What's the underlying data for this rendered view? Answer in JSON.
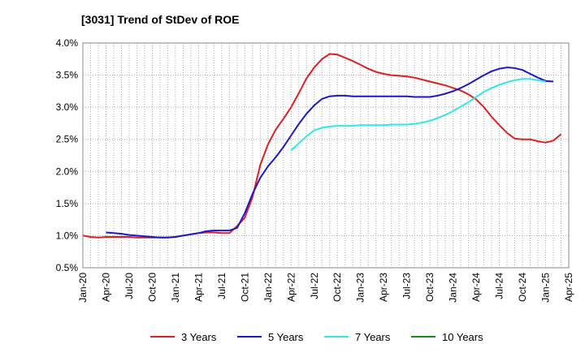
{
  "chart_data": {
    "type": "line",
    "title": "[3031]  Trend of StDev of ROE",
    "xlabel": "",
    "ylabel": "",
    "y_ticks": [
      "0.5%",
      "1.0%",
      "1.5%",
      "2.0%",
      "2.5%",
      "3.0%",
      "3.5%",
      "4.0%"
    ],
    "ylim": [
      0.5,
      4.0
    ],
    "x_ticks": [
      "Jan-20",
      "Apr-20",
      "Jul-20",
      "Oct-20",
      "Jan-21",
      "Apr-21",
      "Jul-21",
      "Oct-21",
      "Jan-22",
      "Apr-22",
      "Jul-22",
      "Oct-22",
      "Jan-23",
      "Apr-23",
      "Jul-23",
      "Oct-23",
      "Jan-24",
      "Apr-24",
      "Jul-24",
      "Oct-24",
      "Jan-25",
      "Apr-25"
    ],
    "grid": true,
    "legend_position": "bottom",
    "series": [
      {
        "name": "3 Years",
        "color": "#e02020",
        "points": [
          [
            0,
            1.0
          ],
          [
            1,
            0.98
          ],
          [
            2,
            0.97
          ],
          [
            3,
            0.98
          ],
          [
            4,
            0.98
          ],
          [
            5,
            0.98
          ],
          [
            6,
            0.98
          ],
          [
            7,
            0.97
          ],
          [
            8,
            0.97
          ],
          [
            9,
            0.97
          ],
          [
            10,
            0.97
          ],
          [
            11,
            0.97
          ],
          [
            12,
            0.98
          ],
          [
            13,
            1.0
          ],
          [
            14,
            1.02
          ],
          [
            15,
            1.04
          ],
          [
            16,
            1.05
          ],
          [
            17,
            1.05
          ],
          [
            18,
            1.04
          ],
          [
            19,
            1.04
          ],
          [
            20,
            1.15
          ],
          [
            21,
            1.28
          ],
          [
            22,
            1.6
          ],
          [
            23,
            2.1
          ],
          [
            24,
            2.42
          ],
          [
            25,
            2.65
          ],
          [
            26,
            2.82
          ],
          [
            27,
            3.0
          ],
          [
            28,
            3.22
          ],
          [
            29,
            3.45
          ],
          [
            30,
            3.62
          ],
          [
            31,
            3.75
          ],
          [
            32,
            3.83
          ],
          [
            33,
            3.82
          ],
          [
            34,
            3.77
          ],
          [
            35,
            3.72
          ],
          [
            36,
            3.66
          ],
          [
            37,
            3.6
          ],
          [
            38,
            3.55
          ],
          [
            39,
            3.52
          ],
          [
            40,
            3.5
          ],
          [
            41,
            3.49
          ],
          [
            42,
            3.48
          ],
          [
            43,
            3.46
          ],
          [
            44,
            3.43
          ],
          [
            45,
            3.4
          ],
          [
            46,
            3.37
          ],
          [
            47,
            3.34
          ],
          [
            48,
            3.3
          ],
          [
            49,
            3.26
          ],
          [
            50,
            3.2
          ],
          [
            51,
            3.12
          ],
          [
            52,
            3.0
          ],
          [
            53,
            2.85
          ],
          [
            54,
            2.72
          ],
          [
            55,
            2.6
          ],
          [
            56,
            2.51
          ],
          [
            57,
            2.5
          ],
          [
            58,
            2.5
          ],
          [
            59,
            2.47
          ],
          [
            60,
            2.45
          ],
          [
            61,
            2.48
          ],
          [
            62,
            2.58
          ]
        ]
      },
      {
        "name": "5 Years",
        "color": "#1a1acc",
        "points": [
          [
            3,
            1.05
          ],
          [
            4,
            1.04
          ],
          [
            5,
            1.03
          ],
          [
            6,
            1.01
          ],
          [
            7,
            1.0
          ],
          [
            8,
            0.99
          ],
          [
            9,
            0.98
          ],
          [
            10,
            0.97
          ],
          [
            11,
            0.97
          ],
          [
            12,
            0.98
          ],
          [
            13,
            1.0
          ],
          [
            14,
            1.02
          ],
          [
            15,
            1.04
          ],
          [
            16,
            1.07
          ],
          [
            17,
            1.08
          ],
          [
            18,
            1.08
          ],
          [
            19,
            1.08
          ],
          [
            20,
            1.12
          ],
          [
            21,
            1.35
          ],
          [
            22,
            1.65
          ],
          [
            23,
            1.9
          ],
          [
            24,
            2.08
          ],
          [
            25,
            2.22
          ],
          [
            26,
            2.38
          ],
          [
            27,
            2.56
          ],
          [
            28,
            2.74
          ],
          [
            29,
            2.9
          ],
          [
            30,
            3.03
          ],
          [
            31,
            3.13
          ],
          [
            32,
            3.17
          ],
          [
            33,
            3.18
          ],
          [
            34,
            3.18
          ],
          [
            35,
            3.17
          ],
          [
            36,
            3.17
          ],
          [
            37,
            3.17
          ],
          [
            38,
            3.17
          ],
          [
            39,
            3.17
          ],
          [
            40,
            3.17
          ],
          [
            41,
            3.17
          ],
          [
            42,
            3.17
          ],
          [
            43,
            3.16
          ],
          [
            44,
            3.16
          ],
          [
            45,
            3.16
          ],
          [
            46,
            3.18
          ],
          [
            47,
            3.21
          ],
          [
            48,
            3.25
          ],
          [
            49,
            3.3
          ],
          [
            50,
            3.36
          ],
          [
            51,
            3.43
          ],
          [
            52,
            3.5
          ],
          [
            53,
            3.56
          ],
          [
            54,
            3.6
          ],
          [
            55,
            3.62
          ],
          [
            56,
            3.61
          ],
          [
            57,
            3.58
          ],
          [
            58,
            3.52
          ],
          [
            59,
            3.46
          ],
          [
            60,
            3.41
          ],
          [
            61,
            3.4
          ]
        ]
      },
      {
        "name": "7 Years",
        "color": "#30e8e8",
        "points": [
          [
            27,
            2.33
          ],
          [
            28,
            2.44
          ],
          [
            29,
            2.55
          ],
          [
            30,
            2.64
          ],
          [
            31,
            2.68
          ],
          [
            32,
            2.7
          ],
          [
            33,
            2.71
          ],
          [
            34,
            2.71
          ],
          [
            35,
            2.71
          ],
          [
            36,
            2.72
          ],
          [
            37,
            2.72
          ],
          [
            38,
            2.72
          ],
          [
            39,
            2.72
          ],
          [
            40,
            2.73
          ],
          [
            41,
            2.73
          ],
          [
            42,
            2.73
          ],
          [
            43,
            2.74
          ],
          [
            44,
            2.76
          ],
          [
            45,
            2.79
          ],
          [
            46,
            2.83
          ],
          [
            47,
            2.88
          ],
          [
            48,
            2.94
          ],
          [
            49,
            3.01
          ],
          [
            50,
            3.08
          ],
          [
            51,
            3.16
          ],
          [
            52,
            3.24
          ],
          [
            53,
            3.3
          ],
          [
            54,
            3.35
          ],
          [
            55,
            3.39
          ],
          [
            56,
            3.42
          ],
          [
            57,
            3.44
          ],
          [
            58,
            3.44
          ],
          [
            59,
            3.42
          ],
          [
            60,
            3.4
          ]
        ]
      },
      {
        "name": "10 Years",
        "color": "#1a8c1a",
        "points": []
      }
    ]
  }
}
